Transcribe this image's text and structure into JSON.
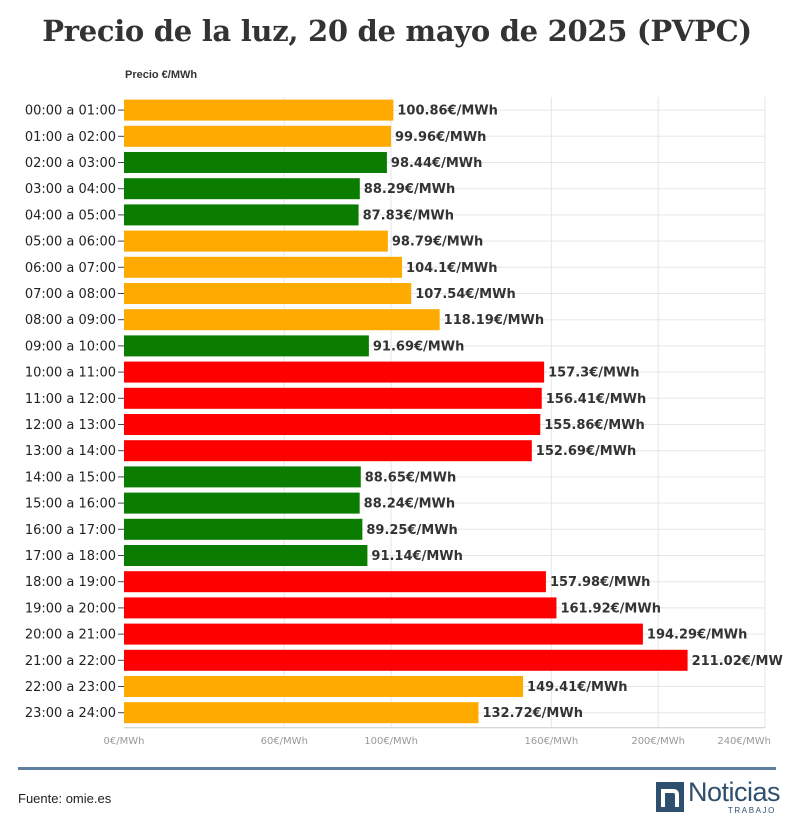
{
  "title": "Precio de la luz, 20 de mayo de 2025 (PVPC)",
  "source": "Fuente: omie.es",
  "logo": {
    "name": "Noticias",
    "sub": "TRABAJO"
  },
  "colors": {
    "low": "#0a7d00",
    "medium": "#ffaa00",
    "high": "#ff0000",
    "grid": "#e6e6e6",
    "divider": "#5f7f9f",
    "brand": "#2f4f6f"
  },
  "chart_data": {
    "type": "bar",
    "orientation": "horizontal",
    "title": "Precio de la luz, 20 de mayo de 2025 (PVPC)",
    "axis_caption": "Precio €/MWh",
    "xlabel": "",
    "ylabel": "",
    "xlim": [
      0,
      240
    ],
    "grid": true,
    "x_ticks": [
      {
        "value": 0,
        "label": "0€/MWh"
      },
      {
        "value": 60,
        "label": "60€/MWh"
      },
      {
        "value": 100,
        "label": "100€/MWh"
      },
      {
        "value": 160,
        "label": "160€/MWh"
      },
      {
        "value": 200,
        "label": "200€/MWh"
      },
      {
        "value": 240,
        "label": "240€/MWh"
      }
    ],
    "categories": [
      "00:00 a 01:00",
      "01:00 a 02:00",
      "02:00 a 03:00",
      "03:00 a 04:00",
      "04:00 a 05:00",
      "05:00 a 06:00",
      "06:00 a 07:00",
      "07:00 a 08:00",
      "08:00 a 09:00",
      "09:00 a 10:00",
      "10:00 a 11:00",
      "11:00 a 12:00",
      "12:00 a 13:00",
      "13:00 a 14:00",
      "14:00 a 15:00",
      "15:00 a 16:00",
      "16:00 a 17:00",
      "17:00 a 18:00",
      "18:00 a 19:00",
      "19:00 a 20:00",
      "20:00 a 21:00",
      "21:00 a 22:00",
      "22:00 a 23:00",
      "23:00 a 24:00"
    ],
    "values": [
      100.86,
      99.96,
      98.44,
      88.29,
      87.83,
      98.79,
      104.1,
      107.54,
      118.19,
      91.69,
      157.3,
      156.41,
      155.86,
      152.69,
      88.65,
      88.24,
      89.25,
      91.14,
      157.98,
      161.92,
      194.29,
      211.02,
      149.41,
      132.72
    ],
    "value_labels": [
      "100.86€/MWh",
      "99.96€/MWh",
      "98.44€/MWh",
      "88.29€/MWh",
      "87.83€/MWh",
      "98.79€/MWh",
      "104.1€/MWh",
      "107.54€/MWh",
      "118.19€/MWh",
      "91.69€/MWh",
      "157.3€/MWh",
      "156.41€/MWh",
      "155.86€/MWh",
      "152.69€/MWh",
      "88.65€/MWh",
      "88.24€/MWh",
      "89.25€/MWh",
      "91.14€/MWh",
      "157.98€/MWh",
      "161.92€/MWh",
      "194.29€/MWh",
      "211.02€/MW",
      "149.41€/MWh",
      "132.72€/MWh"
    ],
    "levels": [
      "medium",
      "medium",
      "low",
      "low",
      "low",
      "medium",
      "medium",
      "medium",
      "medium",
      "low",
      "high",
      "high",
      "high",
      "high",
      "low",
      "low",
      "low",
      "low",
      "high",
      "high",
      "high",
      "high",
      "medium",
      "medium"
    ]
  }
}
